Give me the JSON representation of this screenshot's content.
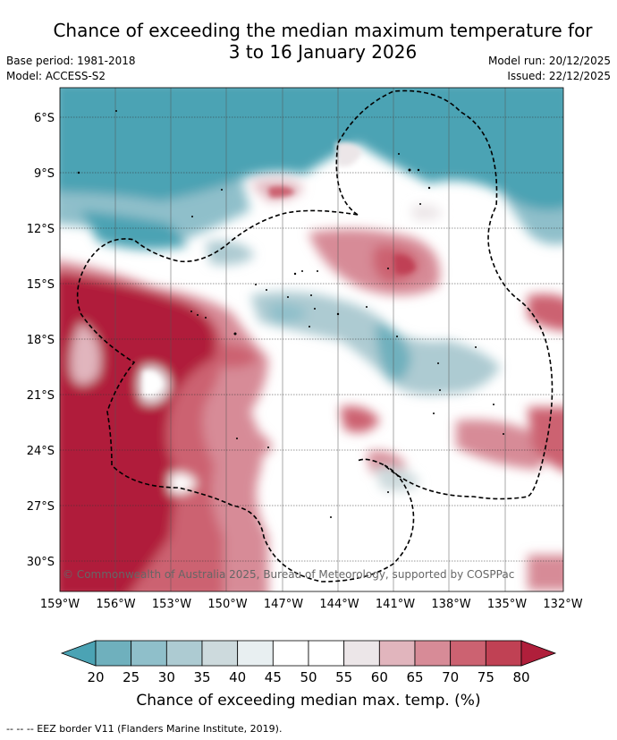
{
  "title_line1": "Chance of exceeding the median maximum temperature for",
  "title_line2": "3 to 16 January 2026",
  "base_period": "Base period: 1981-2018",
  "model": "Model: ACCESS-S2",
  "model_run": "Model run: 20/12/2025",
  "issued": "Issued: 22/12/2025",
  "copyright": "© Commonwealth of Australia 2025, Bureau of Meteorology, supported by COSPPac",
  "lat_labels": [
    "6°S",
    "9°S",
    "12°S",
    "15°S",
    "18°S",
    "21°S",
    "24°S",
    "27°S",
    "30°S"
  ],
  "lon_labels": [
    "159°W",
    "156°W",
    "153°W",
    "150°W",
    "147°W",
    "144°W",
    "141°W",
    "138°W",
    "135°W",
    "132°W"
  ],
  "colorbar": {
    "ticks": [
      "20",
      "25",
      "30",
      "35",
      "40",
      "45",
      "50",
      "55",
      "60",
      "65",
      "70",
      "75",
      "80"
    ],
    "colors": [
      "#4ba3b4",
      "#6fb0bd",
      "#8fbfca",
      "#adcbd2",
      "#cddadd",
      "#e8eff1",
      "#ffffff",
      "#ffffff",
      "#ece6e8",
      "#e1b5bd",
      "#d78b97",
      "#cc6271",
      "#c04154",
      "#b01f3b"
    ],
    "label": "Chance of exceeding median max. temp. (%)"
  },
  "footer": "-- -- -- EEZ border V11 (Flanders Marine Institute, 2019)."
}
